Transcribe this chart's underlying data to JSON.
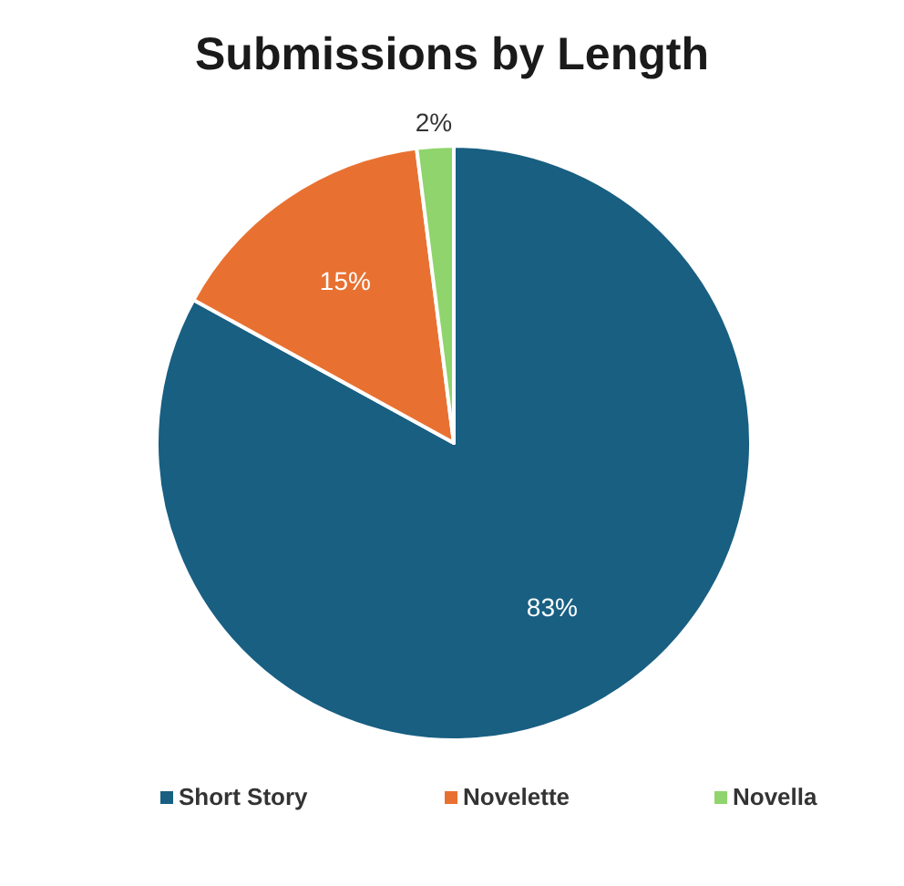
{
  "chart_data": {
    "type": "pie",
    "title": "Submissions by Length",
    "categories": [
      "Short Story",
      "Novelette",
      "Novella"
    ],
    "values": [
      83,
      15,
      2
    ],
    "value_labels": [
      "83%",
      "15%",
      "2%"
    ],
    "colors": [
      "#185f82",
      "#e87131",
      "#8fd46c"
    ],
    "legend": "bottom"
  }
}
